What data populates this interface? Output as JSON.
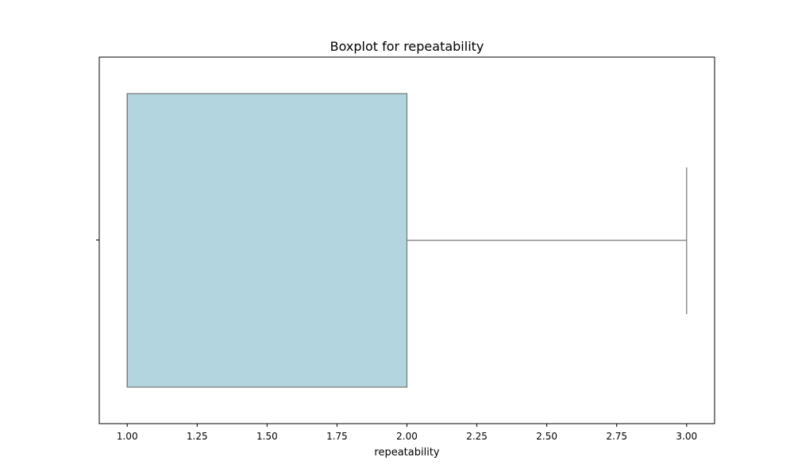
{
  "chart_data": {
    "type": "box",
    "title": "Boxplot for repeatability",
    "xlabel": "repeatability",
    "ylabel": "",
    "orientation": "horizontal",
    "xlim": [
      0.9,
      3.1
    ],
    "x_ticks": [
      "1.00",
      "1.25",
      "1.50",
      "1.75",
      "2.00",
      "2.25",
      "2.50",
      "2.75",
      "3.00"
    ],
    "x_tick_values": [
      1.0,
      1.25,
      1.5,
      1.75,
      2.0,
      2.25,
      2.5,
      2.75,
      3.0
    ],
    "grid": false,
    "box": {
      "whisker_low": 1.0,
      "q1": 1.0,
      "median": 1.0,
      "q3": 2.0,
      "whisker_high": 3.0
    },
    "box_color": "#b3d5e0",
    "line_color": "#777777"
  }
}
